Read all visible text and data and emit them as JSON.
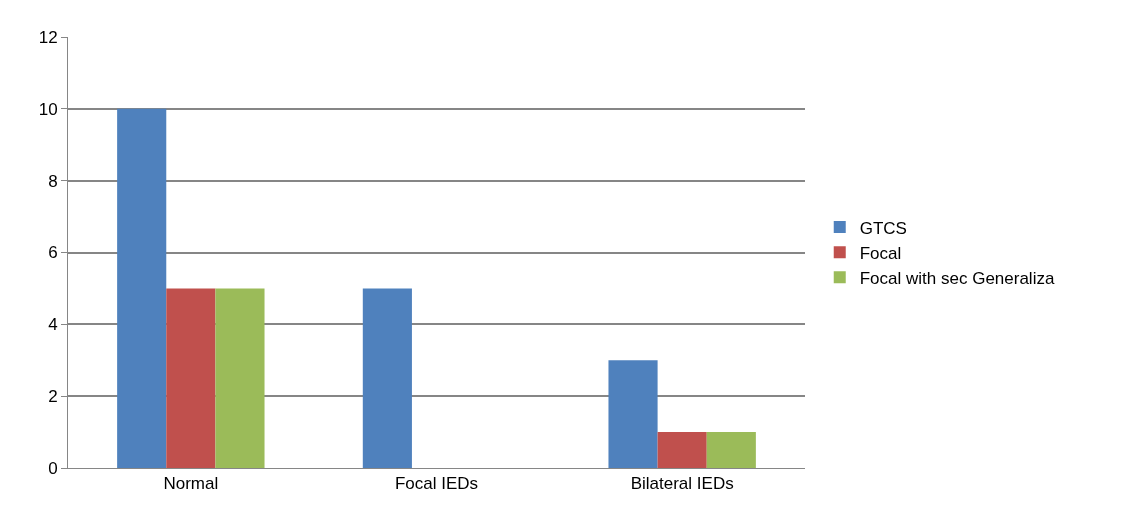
{
  "chart_data": {
    "type": "bar",
    "categories": [
      "Normal",
      "Focal IEDs",
      "Bilateral IEDs"
    ],
    "series": [
      {
        "name": "GTCS",
        "color": "#4f81bd",
        "values": [
          10,
          5,
          3
        ]
      },
      {
        "name": "Focal",
        "color": "#c0504d",
        "values": [
          5,
          0,
          1
        ]
      },
      {
        "name": "Focal with sec Generaliza",
        "color": "#9bbb59",
        "values": [
          5,
          0,
          1
        ]
      }
    ],
    "ylim": [
      0,
      12
    ],
    "yticks": [
      0,
      2,
      4,
      6,
      8,
      10,
      12
    ],
    "grid": "y",
    "legend": "right"
  }
}
